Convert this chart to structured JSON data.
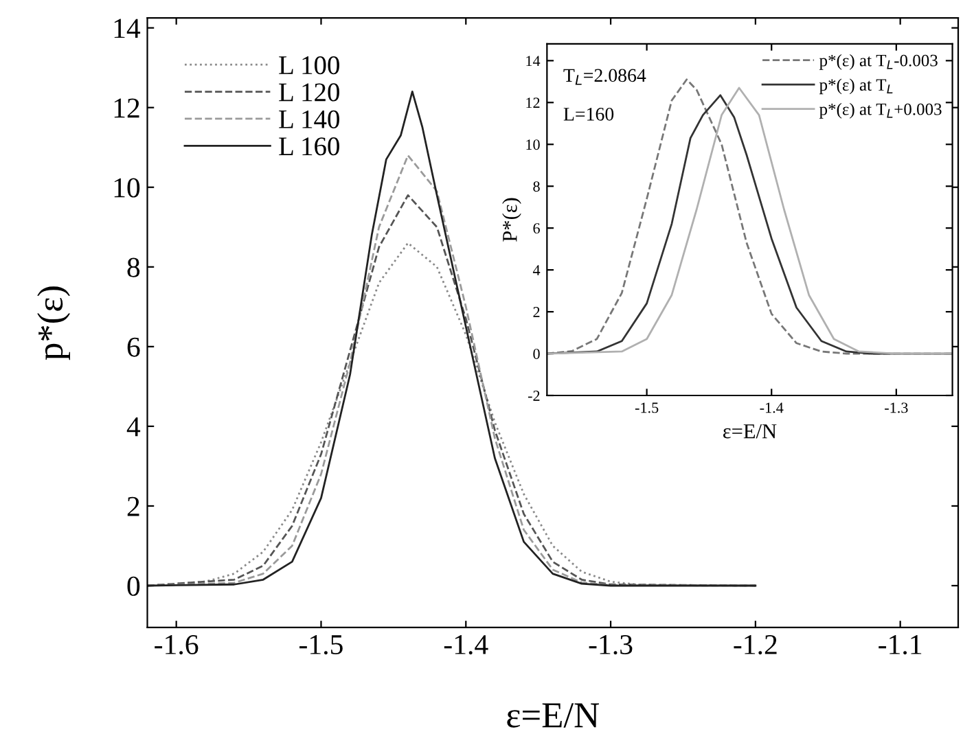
{
  "chart_data": [
    {
      "type": "line",
      "xlabel": "ε=E/N",
      "ylabel": "p*(ε)",
      "xlim": [
        -1.62,
        -1.06
      ],
      "ylim": [
        -1.05,
        14.25
      ],
      "xticks": [
        -1.6,
        -1.5,
        -1.4,
        -1.3,
        -1.2,
        -1.1
      ],
      "yticks": [
        0,
        2,
        4,
        6,
        8,
        10,
        12,
        14
      ],
      "legend": "top left",
      "grid": false,
      "series": [
        {
          "name": "L 100",
          "color": "#8a8a8a",
          "line_style": "dotted",
          "x": [
            -1.62,
            -1.58,
            -1.56,
            -1.54,
            -1.52,
            -1.5,
            -1.48,
            -1.46,
            -1.44,
            -1.42,
            -1.4,
            -1.38,
            -1.36,
            -1.34,
            -1.32,
            -1.3,
            -1.28,
            -1.2
          ],
          "values": [
            0,
            0.1,
            0.3,
            0.85,
            1.9,
            3.6,
            5.6,
            7.6,
            8.6,
            8.0,
            6.3,
            4.1,
            2.3,
            1.0,
            0.35,
            0.1,
            0.02,
            0
          ]
        },
        {
          "name": "L 120",
          "color": "#555555",
          "line_style": "dashed",
          "x": [
            -1.62,
            -1.56,
            -1.54,
            -1.52,
            -1.5,
            -1.48,
            -1.46,
            -1.44,
            -1.42,
            -1.4,
            -1.38,
            -1.36,
            -1.34,
            -1.32,
            -1.3,
            -1.2
          ],
          "values": [
            0,
            0.15,
            0.5,
            1.5,
            3.3,
            5.9,
            8.5,
            9.8,
            9.0,
            6.7,
            3.9,
            1.8,
            0.6,
            0.15,
            0.03,
            0
          ]
        },
        {
          "name": "L 140",
          "color": "#9a9a9a",
          "line_style": "dashed",
          "x": [
            -1.62,
            -1.56,
            -1.54,
            -1.52,
            -1.5,
            -1.48,
            -1.46,
            -1.44,
            -1.42,
            -1.4,
            -1.38,
            -1.36,
            -1.34,
            -1.32,
            -1.3,
            -1.2
          ],
          "values": [
            0,
            0.07,
            0.3,
            1.0,
            2.8,
            5.6,
            9.0,
            10.8,
            9.9,
            7.0,
            3.7,
            1.4,
            0.4,
            0.08,
            0.01,
            0
          ]
        },
        {
          "name": "L 160",
          "color": "#222222",
          "line_style": "solid",
          "x": [
            -1.62,
            -1.56,
            -1.54,
            -1.52,
            -1.5,
            -1.48,
            -1.465,
            -1.455,
            -1.445,
            -1.437,
            -1.43,
            -1.42,
            -1.4,
            -1.38,
            -1.36,
            -1.34,
            -1.32,
            -1.3,
            -1.2
          ],
          "values": [
            0,
            0.03,
            0.15,
            0.6,
            2.2,
            5.3,
            8.8,
            10.7,
            11.3,
            12.4,
            11.5,
            9.8,
            6.5,
            3.2,
            1.1,
            0.3,
            0.05,
            0,
            0
          ]
        }
      ]
    },
    {
      "type": "line",
      "xlabel": "ε=E/N",
      "ylabel": "P*(ε)",
      "xlim": [
        -1.58,
        -1.255
      ],
      "ylim": [
        -2,
        14.8
      ],
      "xticks": [
        -1.5,
        -1.4,
        -1.3
      ],
      "yticks": [
        -2,
        0,
        2,
        4,
        6,
        8,
        10,
        12,
        14
      ],
      "legend": "top right",
      "grid": false,
      "annotations": [
        "T$_{L}$=2.0864",
        "L=160"
      ],
      "series": [
        {
          "name": "p*(ε) at T$_{L}$-0.003",
          "color": "#777777",
          "line_style": "dashed",
          "x": [
            -1.58,
            -1.56,
            -1.54,
            -1.52,
            -1.5,
            -1.48,
            -1.468,
            -1.46,
            -1.44,
            -1.42,
            -1.4,
            -1.38,
            -1.36,
            -1.34,
            -1.255
          ],
          "values": [
            0,
            0.12,
            0.7,
            2.9,
            7.4,
            12.1,
            13.1,
            12.6,
            10.0,
            5.3,
            1.9,
            0.5,
            0.1,
            0,
            0
          ]
        },
        {
          "name": "p*(ε) at T$_{L}$",
          "color": "#333333",
          "line_style": "solid",
          "x": [
            -1.58,
            -1.54,
            -1.52,
            -1.5,
            -1.48,
            -1.465,
            -1.455,
            -1.441,
            -1.43,
            -1.42,
            -1.4,
            -1.38,
            -1.36,
            -1.34,
            -1.32,
            -1.255
          ],
          "values": [
            0,
            0.1,
            0.6,
            2.4,
            6.2,
            10.3,
            11.4,
            12.35,
            11.3,
            9.5,
            5.5,
            2.2,
            0.6,
            0.1,
            0,
            0
          ]
        },
        {
          "name": "p*(ε) at T$_{L}$+0.003",
          "color": "#b0b0b0",
          "line_style": "solid",
          "x": [
            -1.58,
            -1.52,
            -1.5,
            -1.48,
            -1.46,
            -1.44,
            -1.426,
            -1.41,
            -1.39,
            -1.37,
            -1.35,
            -1.33,
            -1.3,
            -1.255
          ],
          "values": [
            0,
            0.1,
            0.7,
            2.8,
            6.9,
            11.4,
            12.7,
            11.4,
            6.9,
            2.8,
            0.7,
            0.1,
            0,
            0
          ]
        }
      ]
    }
  ]
}
